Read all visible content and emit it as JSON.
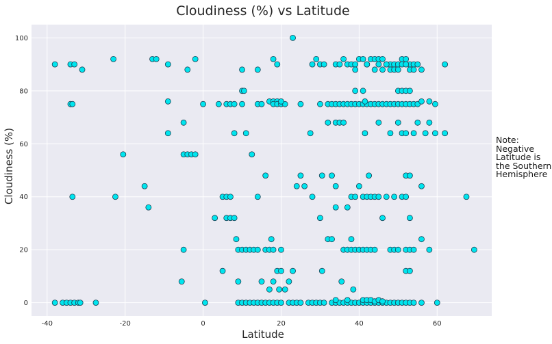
{
  "chart_data": {
    "type": "scatter",
    "title": "Cloudiness (%) vs Latitude",
    "xlabel": "Latitude",
    "ylabel": "Cloudiness (%)",
    "xlim": [
      -44,
      74
    ],
    "ylim": [
      -5,
      105
    ],
    "xticks": [
      -40,
      -20,
      0,
      20,
      40,
      60
    ],
    "yticks": [
      0,
      20,
      40,
      60,
      80,
      100
    ],
    "grid": true,
    "marker_color": "#00e5ee",
    "marker_edge_color": "#1a3d52",
    "background_color": "#eaeaf2",
    "note": "Note: Negative Latitude is the Southern Hemisphere",
    "points": [
      [
        -38,
        90
      ],
      [
        -34,
        90
      ],
      [
        -33,
        90
      ],
      [
        -31,
        88
      ],
      [
        -23,
        92
      ],
      [
        -13,
        92
      ],
      [
        -12,
        92
      ],
      [
        -9,
        90
      ],
      [
        -4,
        88
      ],
      [
        -2,
        92
      ],
      [
        14,
        88
      ],
      [
        10,
        88
      ],
      [
        18,
        92
      ],
      [
        19,
        90
      ],
      [
        23,
        100
      ],
      [
        -34,
        75
      ],
      [
        -33.5,
        75
      ],
      [
        -9,
        76
      ],
      [
        0,
        75
      ],
      [
        4,
        75
      ],
      [
        6,
        75
      ],
      [
        7,
        75
      ],
      [
        8,
        75
      ],
      [
        10,
        80
      ],
      [
        10.5,
        80
      ],
      [
        10,
        75
      ],
      [
        14,
        75
      ],
      [
        15,
        75
      ],
      [
        17,
        76
      ],
      [
        18,
        76
      ],
      [
        19,
        76
      ],
      [
        18,
        75
      ],
      [
        19,
        75
      ],
      [
        20,
        75
      ],
      [
        21,
        75
      ],
      [
        20,
        76
      ],
      [
        -9,
        64
      ],
      [
        8,
        64
      ],
      [
        11,
        64
      ],
      [
        -5,
        68
      ],
      [
        -20.5,
        56
      ],
      [
        -5,
        56
      ],
      [
        -4,
        56
      ],
      [
        -3,
        56
      ],
      [
        -2,
        56
      ],
      [
        12.5,
        56
      ],
      [
        -33.5,
        40
      ],
      [
        -22.5,
        40
      ],
      [
        -15,
        44
      ],
      [
        -14,
        36
      ],
      [
        5,
        40
      ],
      [
        6,
        40
      ],
      [
        7,
        40
      ],
      [
        14,
        40
      ],
      [
        16,
        48
      ],
      [
        25,
        48
      ],
      [
        24,
        44
      ],
      [
        26,
        44
      ],
      [
        28,
        40
      ],
      [
        3,
        32
      ],
      [
        6,
        32
      ],
      [
        7,
        32
      ],
      [
        8,
        32
      ],
      [
        8.5,
        24
      ],
      [
        9,
        20
      ],
      [
        10,
        20
      ],
      [
        11,
        20
      ],
      [
        12,
        20
      ],
      [
        13,
        20
      ],
      [
        14,
        20
      ],
      [
        16,
        20
      ],
      [
        17,
        20
      ],
      [
        17.5,
        24
      ],
      [
        18,
        20
      ],
      [
        20,
        20
      ],
      [
        -5,
        20
      ],
      [
        -5.5,
        8
      ],
      [
        5,
        12
      ],
      [
        9,
        8
      ],
      [
        15,
        8
      ],
      [
        17,
        5
      ],
      [
        18,
        8
      ],
      [
        19,
        12
      ],
      [
        20,
        12
      ],
      [
        19.5,
        5
      ],
      [
        21,
        5
      ],
      [
        22,
        8
      ],
      [
        23,
        12
      ],
      [
        -38,
        0
      ],
      [
        -36,
        0
      ],
      [
        -35,
        0
      ],
      [
        -34,
        0
      ],
      [
        -33,
        0
      ],
      [
        -32,
        0
      ],
      [
        -31.5,
        0
      ],
      [
        -27.5,
        0
      ],
      [
        0.5,
        0
      ],
      [
        9,
        0
      ],
      [
        10,
        0
      ],
      [
        11,
        0
      ],
      [
        12,
        0
      ],
      [
        13,
        0
      ],
      [
        14,
        0
      ],
      [
        15,
        0
      ],
      [
        16,
        0
      ],
      [
        17,
        0
      ],
      [
        18,
        0
      ],
      [
        19,
        0
      ],
      [
        20,
        0
      ],
      [
        22,
        0
      ],
      [
        23,
        0
      ],
      [
        24,
        0
      ],
      [
        25,
        0
      ],
      [
        27,
        0
      ],
      [
        28,
        0
      ],
      [
        29,
        0
      ],
      [
        30,
        0
      ],
      [
        31,
        0
      ],
      [
        33,
        0
      ],
      [
        34,
        0
      ],
      [
        35,
        0
      ],
      [
        36,
        0
      ],
      [
        37,
        0
      ],
      [
        38,
        0
      ],
      [
        39,
        0
      ],
      [
        40,
        0
      ],
      [
        41,
        0
      ],
      [
        42,
        0
      ],
      [
        43,
        0
      ],
      [
        44,
        0
      ],
      [
        45,
        0
      ],
      [
        46,
        0
      ],
      [
        47,
        0
      ],
      [
        48,
        0
      ],
      [
        49,
        0
      ],
      [
        50,
        0
      ],
      [
        51,
        0
      ],
      [
        52,
        0
      ],
      [
        53,
        0
      ],
      [
        54,
        0
      ],
      [
        56,
        0
      ],
      [
        60,
        0
      ],
      [
        34,
        1
      ],
      [
        37,
        1
      ],
      [
        41,
        1
      ],
      [
        42,
        1
      ],
      [
        43,
        1
      ],
      [
        44,
        0.5
      ],
      [
        45,
        1
      ],
      [
        46,
        0.5
      ],
      [
        28,
        90
      ],
      [
        29,
        92
      ],
      [
        30,
        90
      ],
      [
        31,
        90
      ],
      [
        34,
        90
      ],
      [
        35,
        90
      ],
      [
        36,
        92
      ],
      [
        37,
        90
      ],
      [
        38,
        90
      ],
      [
        39,
        90
      ],
      [
        40,
        92
      ],
      [
        41,
        92
      ],
      [
        42,
        90
      ],
      [
        43,
        92
      ],
      [
        44,
        92
      ],
      [
        45,
        92
      ],
      [
        46,
        92
      ],
      [
        47,
        90
      ],
      [
        48,
        90
      ],
      [
        49,
        90
      ],
      [
        50,
        90
      ],
      [
        51,
        92
      ],
      [
        52,
        92
      ],
      [
        53,
        90
      ],
      [
        54,
        90
      ],
      [
        56,
        88
      ],
      [
        62,
        90
      ],
      [
        39,
        88
      ],
      [
        42,
        90
      ],
      [
        44,
        88
      ],
      [
        45,
        90
      ],
      [
        46,
        88
      ],
      [
        47,
        90
      ],
      [
        48,
        88
      ],
      [
        49,
        88
      ],
      [
        50,
        88
      ],
      [
        51,
        90
      ],
      [
        52,
        90
      ],
      [
        53,
        88
      ],
      [
        54,
        88
      ],
      [
        55,
        90
      ],
      [
        25,
        75
      ],
      [
        30,
        75
      ],
      [
        32,
        75
      ],
      [
        33,
        75
      ],
      [
        34,
        75
      ],
      [
        35,
        75
      ],
      [
        36,
        75
      ],
      [
        37,
        75
      ],
      [
        38,
        75
      ],
      [
        39,
        75
      ],
      [
        40,
        75
      ],
      [
        41,
        75
      ],
      [
        42,
        75
      ],
      [
        43,
        75
      ],
      [
        44,
        75
      ],
      [
        45,
        75
      ],
      [
        46,
        75
      ],
      [
        47,
        75
      ],
      [
        48,
        75
      ],
      [
        49,
        75
      ],
      [
        50,
        75
      ],
      [
        51,
        75
      ],
      [
        52,
        75
      ],
      [
        53,
        75
      ],
      [
        54,
        75
      ],
      [
        55,
        75
      ],
      [
        56,
        76
      ],
      [
        58,
        76
      ],
      [
        59.5,
        75
      ],
      [
        39,
        80
      ],
      [
        41,
        80
      ],
      [
        50,
        80
      ],
      [
        51,
        80
      ],
      [
        52,
        80
      ],
      [
        53,
        80
      ],
      [
        41.5,
        76
      ],
      [
        27.5,
        64
      ],
      [
        32,
        68
      ],
      [
        34,
        68
      ],
      [
        35,
        68
      ],
      [
        36,
        68
      ],
      [
        41.5,
        64
      ],
      [
        45,
        68
      ],
      [
        48,
        64
      ],
      [
        50,
        68
      ],
      [
        51,
        64
      ],
      [
        52,
        64
      ],
      [
        54,
        64
      ],
      [
        55,
        68
      ],
      [
        57,
        64
      ],
      [
        58,
        68
      ],
      [
        59.5,
        64
      ],
      [
        62,
        64
      ],
      [
        30.5,
        48
      ],
      [
        33,
        48
      ],
      [
        42.5,
        48
      ],
      [
        52,
        48
      ],
      [
        53,
        48
      ],
      [
        56,
        44
      ],
      [
        34,
        44
      ],
      [
        37,
        36
      ],
      [
        38,
        40
      ],
      [
        39,
        40
      ],
      [
        40,
        44
      ],
      [
        41,
        40
      ],
      [
        42,
        40
      ],
      [
        43,
        40
      ],
      [
        44,
        40
      ],
      [
        45,
        40
      ],
      [
        47,
        40
      ],
      [
        49,
        40
      ],
      [
        51,
        40
      ],
      [
        52,
        40
      ],
      [
        67.5,
        40
      ],
      [
        30,
        32
      ],
      [
        34,
        36
      ],
      [
        46,
        32
      ],
      [
        53,
        32
      ],
      [
        32,
        24
      ],
      [
        33,
        24
      ],
      [
        38,
        24
      ],
      [
        36,
        20
      ],
      [
        37,
        20
      ],
      [
        38,
        20
      ],
      [
        39,
        20
      ],
      [
        40,
        20
      ],
      [
        41,
        20
      ],
      [
        42,
        20
      ],
      [
        43,
        20
      ],
      [
        44,
        20
      ],
      [
        48,
        20
      ],
      [
        49,
        20
      ],
      [
        50,
        20
      ],
      [
        52,
        20
      ],
      [
        53,
        20
      ],
      [
        54,
        20
      ],
      [
        56,
        24
      ],
      [
        58,
        20
      ],
      [
        69.5,
        20
      ],
      [
        30.5,
        12
      ],
      [
        35.5,
        8
      ],
      [
        38.5,
        5
      ],
      [
        52,
        12
      ],
      [
        53,
        12
      ]
    ]
  }
}
